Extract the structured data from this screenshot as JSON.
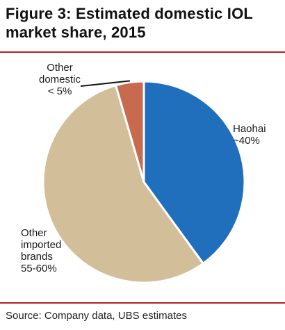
{
  "figure": {
    "title": "Figure 3: Estimated domestic IOL\nmarket share, 2015",
    "source": "Source: Company data, UBS estimates"
  },
  "chart_data": {
    "type": "pie",
    "title": "Figure 3: Estimated domestic IOL market share, 2015",
    "slices": [
      {
        "name": "Haohai",
        "label_lines": [
          "Haohai",
          "~40%"
        ],
        "value": 40,
        "color": "#1f6fbd"
      },
      {
        "name": "Other imported brands",
        "label_lines": [
          "Other",
          "imported",
          "brands",
          "55-60%"
        ],
        "value": 55.5,
        "color": "#d2be98"
      },
      {
        "name": "Other domestic",
        "label_lines": [
          "Other",
          "domestic",
          "< 5%"
        ],
        "value": 4.5,
        "color": "#c86a4e"
      }
    ]
  }
}
